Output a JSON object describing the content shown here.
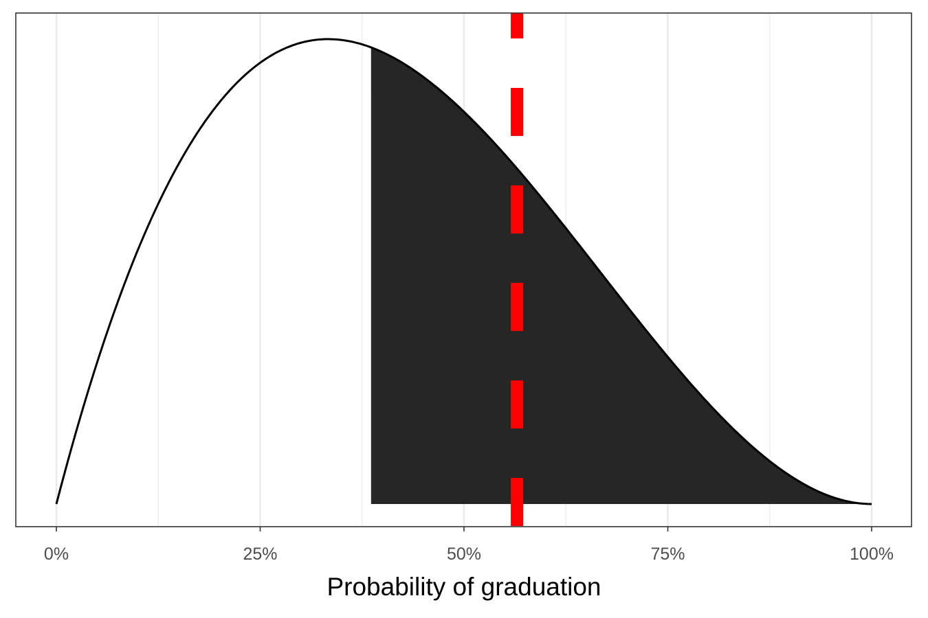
{
  "chart_data": {
    "type": "area",
    "title": "",
    "xlabel": "Probability of graduation",
    "ylabel": "",
    "xlim": [
      0,
      1
    ],
    "x_ticks": [
      0,
      0.25,
      0.5,
      0.75,
      1
    ],
    "x_tick_labels": [
      "0%",
      "25%",
      "50%",
      "75%",
      "100%"
    ],
    "minor_gridlines_x": [
      0.125,
      0.375,
      0.625,
      0.875
    ],
    "y_axis_shown": false,
    "grid": "vertical only",
    "legend": "none",
    "series": [
      {
        "kind": "density-curve",
        "distribution": "beta",
        "shape1": 2,
        "shape2": 3,
        "support": [
          0,
          1
        ],
        "color": "#000000"
      }
    ],
    "shaded_region": {
      "from": 0.386,
      "to": 1.0,
      "fill": "#262626"
    },
    "reference_line": {
      "x": 0.565,
      "style": "dashed",
      "color": "#ff0000"
    }
  }
}
